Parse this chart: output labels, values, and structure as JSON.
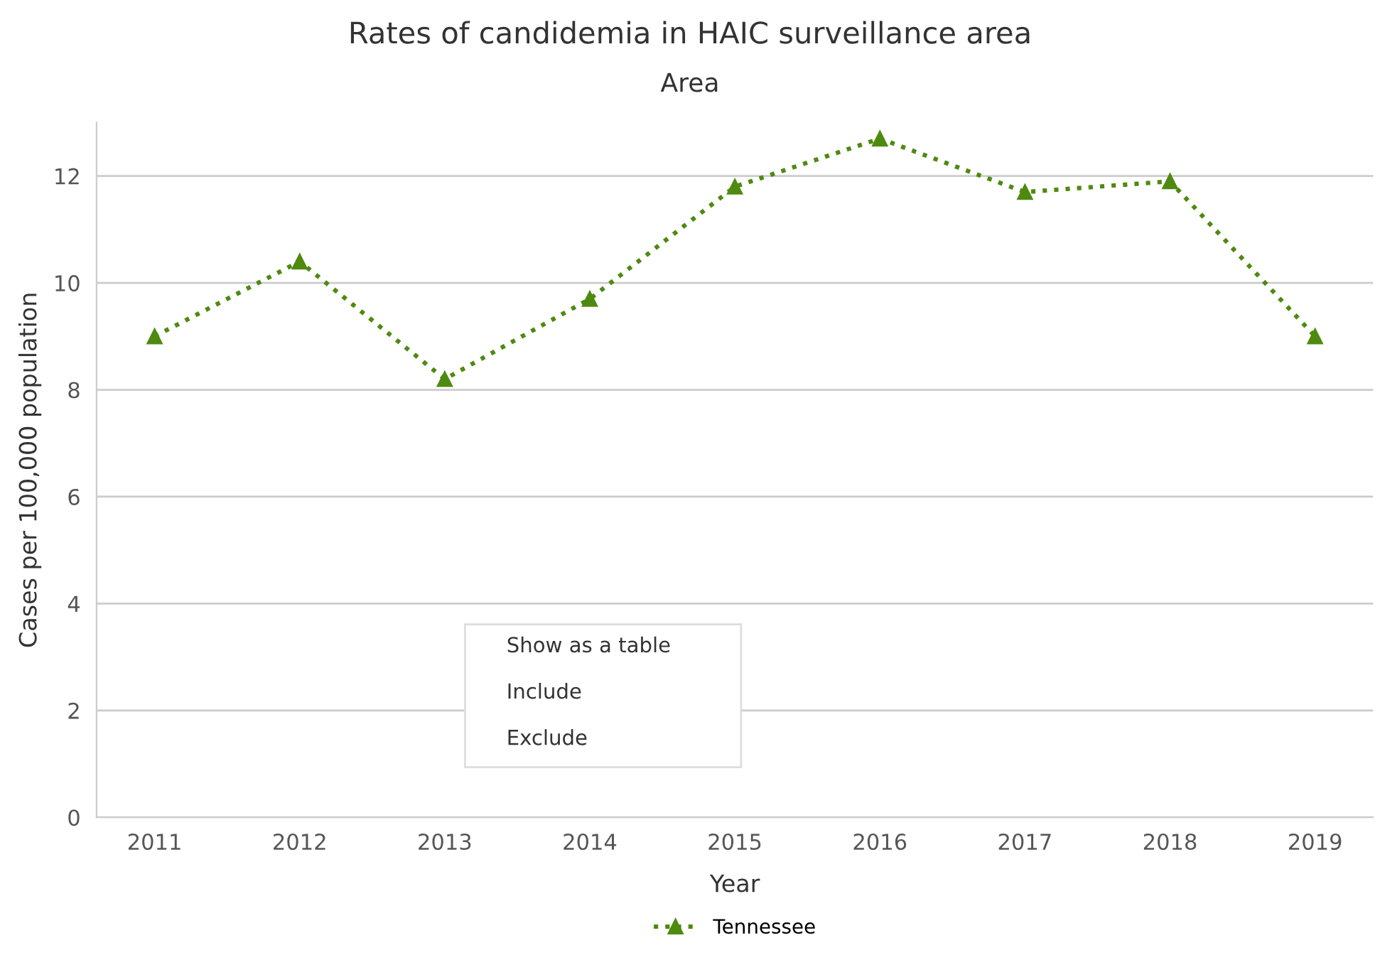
{
  "chart_data": {
    "type": "line",
    "title": "Rates of candidemia in HAIC surveillance area",
    "subtitle": "Area",
    "xlabel": "Year",
    "ylabel": "Cases per 100,000 population",
    "categories": [
      "2011",
      "2012",
      "2013",
      "2014",
      "2015",
      "2016",
      "2017",
      "2018",
      "2019"
    ],
    "series": [
      {
        "name": "Tennessee",
        "color": "#4f8a10",
        "values": [
          9.0,
          10.4,
          8.2,
          9.7,
          11.8,
          12.7,
          11.7,
          11.9,
          9.0
        ]
      }
    ],
    "ylim": [
      0,
      13
    ],
    "yticks": [
      0,
      2,
      4,
      6,
      8,
      10,
      12
    ],
    "grid": "y",
    "legend": "bottom",
    "marker": "triangle",
    "line_style": "dotted",
    "annotations": [
      "Show as a table",
      "Include",
      "Exclude"
    ]
  }
}
